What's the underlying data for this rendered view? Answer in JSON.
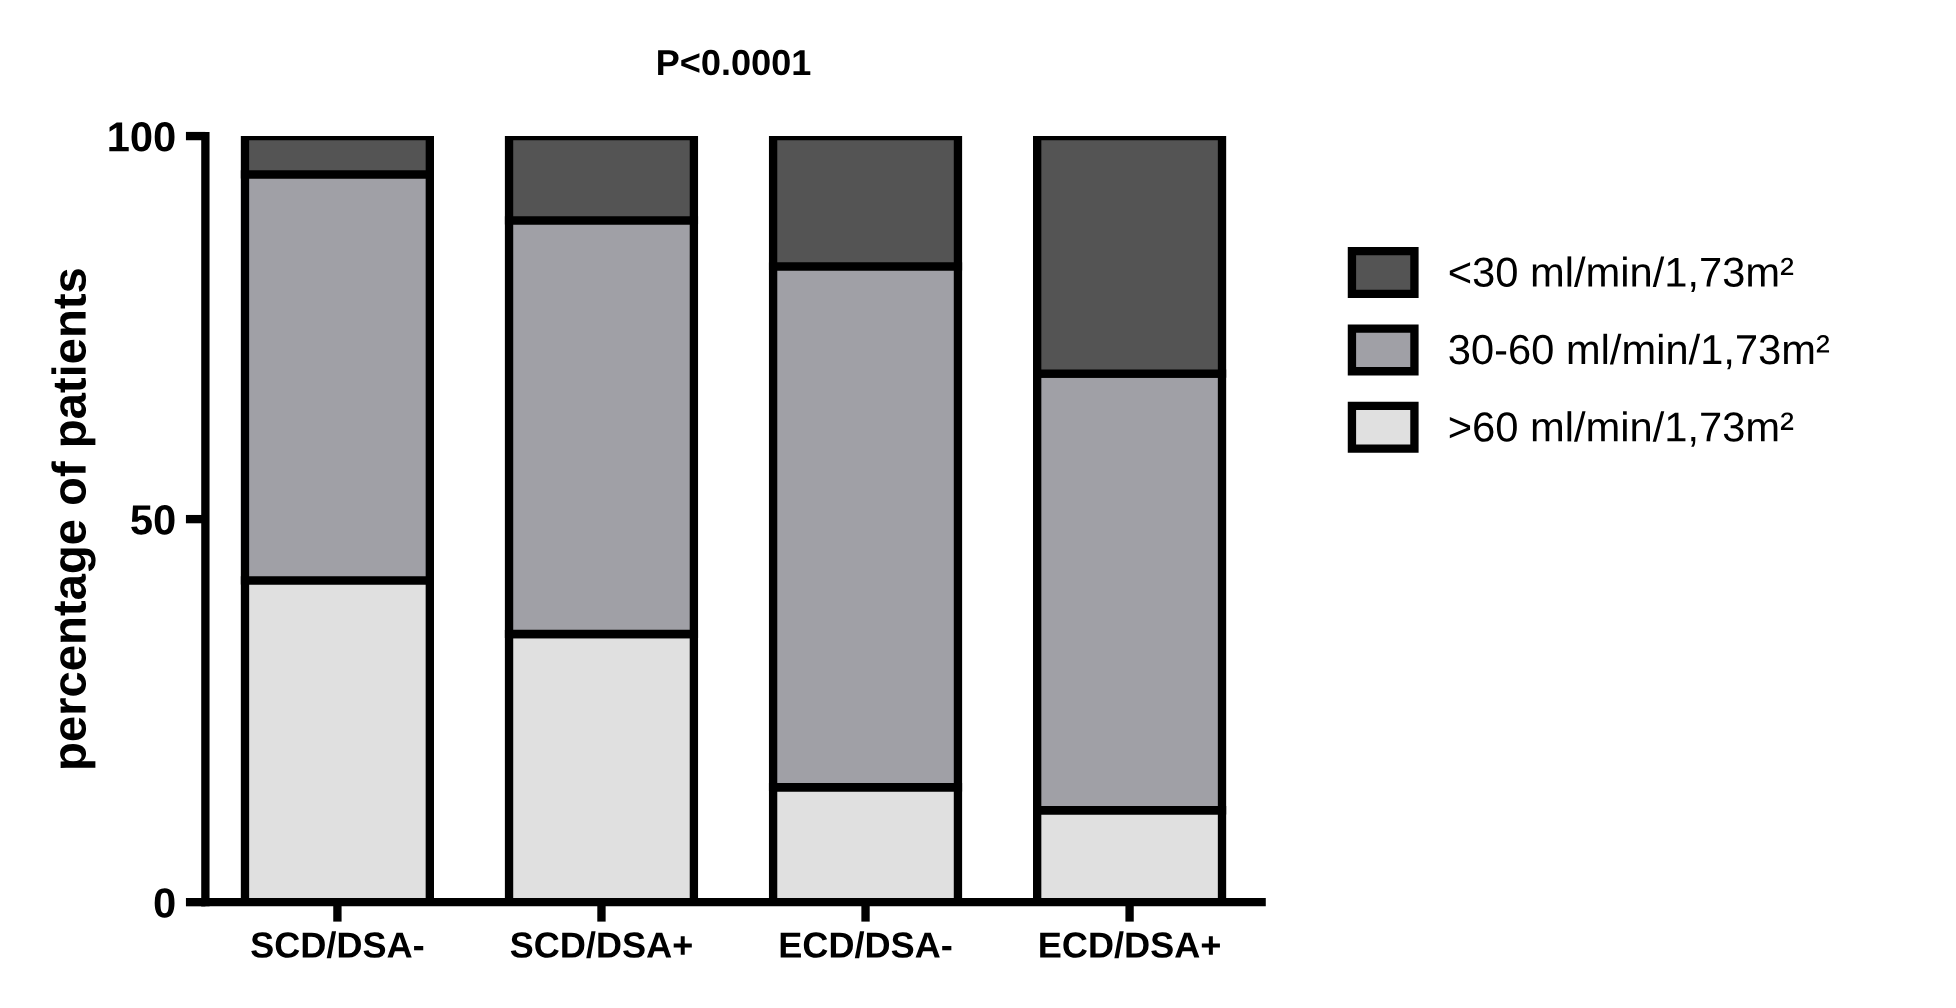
{
  "chart_data": {
    "type": "bar",
    "title": "P<0.0001",
    "ylabel": "percentage of patients",
    "categories": [
      "SCD/DSA-",
      "SCD/DSA+",
      "ECD/DSA-",
      "ECD/DSA+"
    ],
    "stacked": true,
    "series": [
      {
        "name": ">60 ml/min/1,73m²",
        "color": "#e0e0e0",
        "values": [
          42,
          35,
          15,
          12
        ]
      },
      {
        "name": "30-60 ml/min/1,73m²",
        "color": "#a0a0a6",
        "values": [
          53,
          54,
          68,
          57
        ]
      },
      {
        "name": "<30 ml/min/1,73m²",
        "color": "#545454",
        "values": [
          5,
          11,
          17,
          31
        ]
      }
    ],
    "ylim": [
      0,
      100
    ],
    "yticks": [
      0,
      50,
      100
    ],
    "grid": false,
    "legend": "right"
  }
}
